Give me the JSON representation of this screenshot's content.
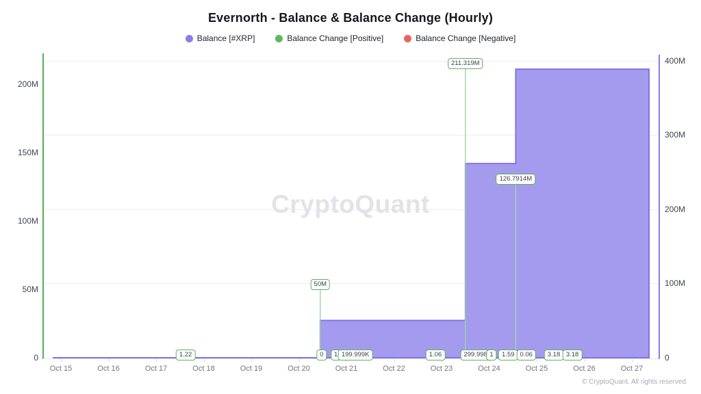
{
  "header": {
    "title": "Evernorth - Balance & Balance Change (Hourly)",
    "legend": [
      {
        "label": "Balance [#XRP]",
        "color": "#8b7de9"
      },
      {
        "label": "Balance Change [Positive]",
        "color": "#5cb85e"
      },
      {
        "label": "Balance Change [Negative]",
        "color": "#e86463"
      }
    ]
  },
  "watermark": "CryptoQuant",
  "footer": "© CryptoQuant. All rights reserved",
  "chart_data": {
    "type": "area",
    "title": "Evernorth - Balance & Balance Change (Hourly)",
    "legend_position": "top",
    "grid": "horizontal-right-axis-ticks",
    "x_categories": [
      "Oct 15",
      "Oct 16",
      "Oct 17",
      "Oct 18",
      "Oct 19",
      "Oct 20",
      "Oct 21",
      "Oct 22",
      "Oct 23",
      "Oct 24",
      "Oct 25",
      "Oct 26",
      "Oct 27"
    ],
    "left_axis": {
      "series": "Balance Change",
      "color": "#55b056",
      "tick_labels": [
        "0",
        "50M",
        "100M",
        "150M",
        "200M"
      ],
      "tick_values": [
        0,
        50000000,
        100000000,
        150000000,
        200000000
      ],
      "max": 200000000
    },
    "right_axis": {
      "series": "Balance [#XRP]",
      "color": "#8b7de9",
      "tick_labels": [
        "0",
        "100M",
        "200M",
        "300M",
        "400M"
      ],
      "tick_values": [
        0,
        100000000,
        200000000,
        300000000,
        400000000
      ],
      "max": 400000000
    },
    "balance_series": {
      "name": "Balance [#XRP]",
      "axis": "right",
      "fill_color": "#a49bef",
      "stroke_color": "#8173e9",
      "points": [
        {
          "day": -0.17,
          "value": 1.22
        },
        {
          "day": 5.45,
          "value": 50200001
        },
        {
          "day": 8.5,
          "value": 261519002
        },
        {
          "day": 9.56,
          "value": 388610402
        }
      ],
      "end_day": 12.36
    },
    "change_events": [
      {
        "day": 2.62,
        "value": 1.22,
        "label": "1.22",
        "placement": "bottom"
      },
      {
        "day": 5.45,
        "value": 50000000,
        "label": "50M",
        "placement": "top"
      },
      {
        "day": 5.48,
        "value": 0,
        "label": "0",
        "placement": "bottom"
      },
      {
        "day": 5.78,
        "value": 1,
        "label": "1",
        "placement": "bottom"
      },
      {
        "day": 6.19,
        "value": 199999,
        "label": "199.999K",
        "placement": "bottom"
      },
      {
        "day": 7.87,
        "value": 1.06,
        "label": "1.06",
        "placement": "bottom"
      },
      {
        "day": 8.5,
        "value": 211319000,
        "label": "211.319M",
        "placement": "top"
      },
      {
        "day": 8.76,
        "value": 299998,
        "label": "299.998K",
        "placement": "bottom"
      },
      {
        "day": 9.05,
        "value": 1,
        "label": "1",
        "placement": "bottom"
      },
      {
        "day": 9.4,
        "value": 1.59,
        "label": "1.59",
        "placement": "bottom"
      },
      {
        "day": 9.56,
        "value": 126791400,
        "label": "126.7914M",
        "placement": "top"
      },
      {
        "day": 9.78,
        "value": 0.06,
        "label": "0.06",
        "placement": "bottom"
      },
      {
        "day": 10.36,
        "value": 3.18,
        "label": "3.18",
        "placement": "bottom"
      },
      {
        "day": 10.75,
        "value": 3.18,
        "label": "3.18",
        "placement": "bottom"
      }
    ],
    "change_line_color": "#a0d5a0",
    "tag_border_color": "#5bb25b"
  }
}
